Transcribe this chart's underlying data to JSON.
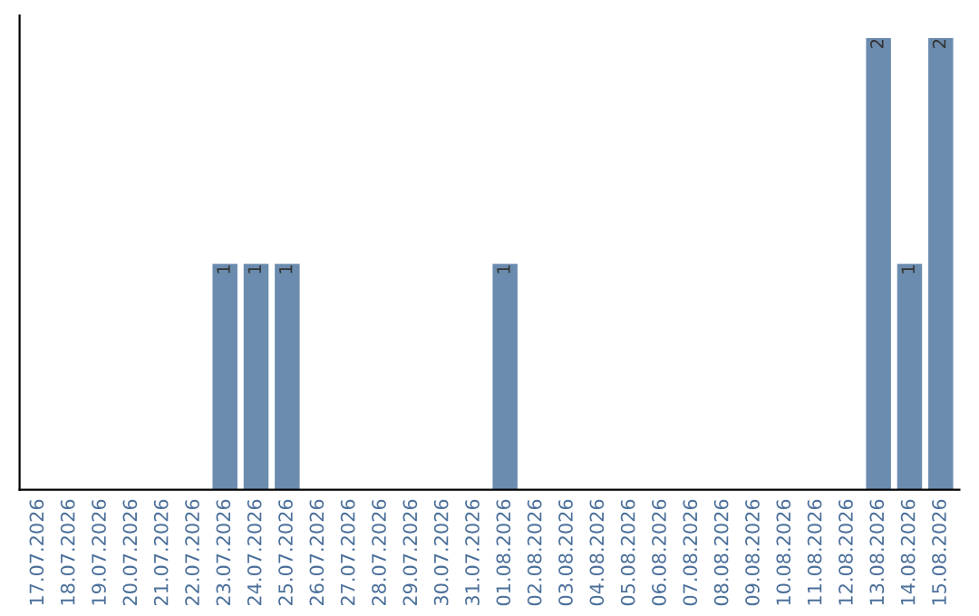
{
  "chart_data": {
    "type": "bar",
    "categories": [
      "17.07.2026",
      "18.07.2026",
      "19.07.2026",
      "20.07.2026",
      "21.07.2026",
      "22.07.2026",
      "23.07.2026",
      "24.07.2026",
      "25.07.2026",
      "26.07.2026",
      "27.07.2026",
      "28.07.2026",
      "29.07.2026",
      "30.07.2026",
      "31.07.2026",
      "01.08.2026",
      "02.08.2026",
      "03.08.2026",
      "04.08.2026",
      "05.08.2026",
      "06.08.2026",
      "07.08.2026",
      "08.08.2026",
      "09.08.2026",
      "10.08.2026",
      "11.08.2026",
      "12.08.2026",
      "13.08.2026",
      "14.08.2026",
      "15.08.2026"
    ],
    "values": [
      0,
      0,
      0,
      0,
      0,
      0,
      1,
      1,
      1,
      0,
      0,
      0,
      0,
      0,
      0,
      1,
      0,
      0,
      0,
      0,
      0,
      0,
      0,
      0,
      0,
      0,
      0,
      2,
      1,
      2
    ],
    "value_labels": [
      null,
      null,
      null,
      null,
      null,
      null,
      "1",
      "1",
      "1",
      null,
      null,
      null,
      null,
      null,
      null,
      "1",
      null,
      null,
      null,
      null,
      null,
      null,
      null,
      null,
      null,
      null,
      null,
      "2",
      "1",
      "2"
    ],
    "color": "#6b8cae",
    "grid": false,
    "legend": false
  }
}
